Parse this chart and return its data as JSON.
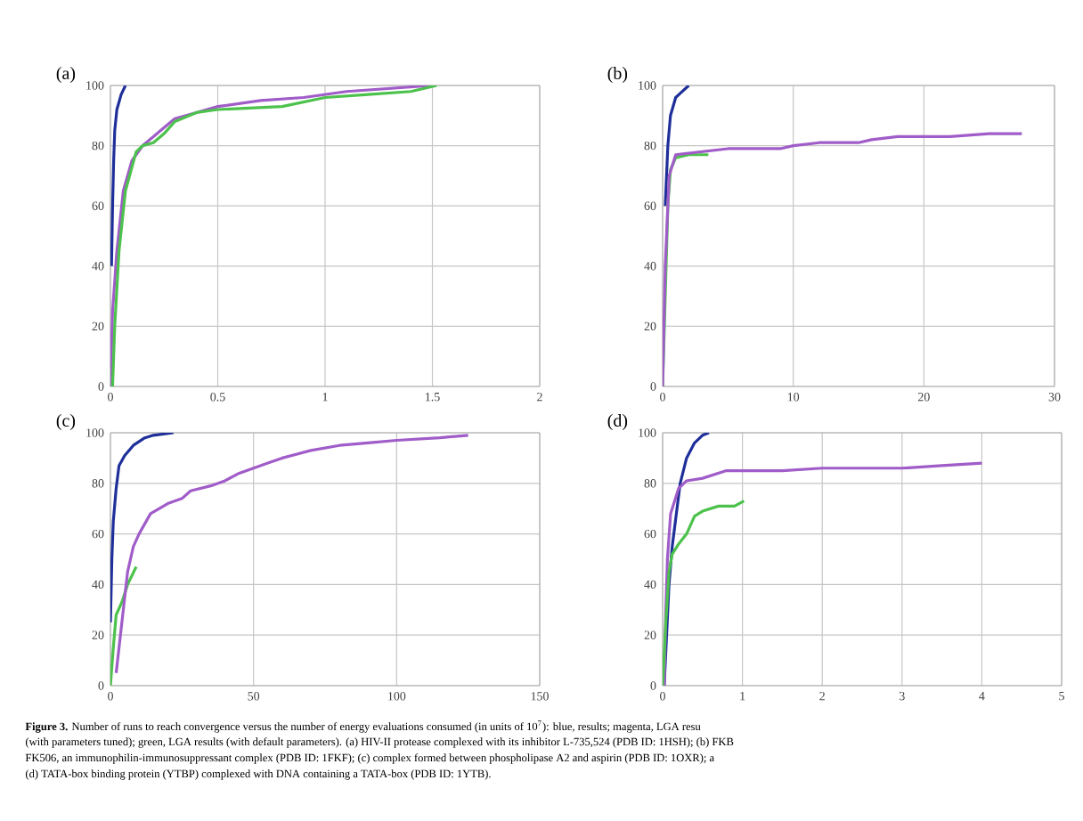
{
  "chart_data": [
    {
      "type": "line",
      "title": "(a)",
      "xlim": [
        0,
        2
      ],
      "xticks": [
        0,
        0.5,
        1,
        1.5,
        2
      ],
      "ylim": [
        0,
        100
      ],
      "yticks": [
        0,
        20,
        40,
        60,
        80,
        100
      ],
      "grid": true,
      "marker": "none",
      "line_style": "solid",
      "series": [
        {
          "color": "#1f2f9a",
          "x": [
            0.005,
            0.01,
            0.015,
            0.02,
            0.03,
            0.05,
            0.07
          ],
          "values": [
            40,
            60,
            75,
            85,
            92,
            97,
            100
          ]
        },
        {
          "color": "#a05cc8",
          "x": [
            0,
            0.01,
            0.03,
            0.06,
            0.1,
            0.15,
            0.2,
            0.25,
            0.3,
            0.4,
            0.5,
            0.7,
            0.9,
            1.1,
            1.5
          ],
          "values": [
            0,
            25,
            45,
            65,
            75,
            80,
            83,
            86,
            89,
            91,
            93,
            95,
            96,
            98,
            100
          ]
        },
        {
          "color": "#4cc24c",
          "x": [
            0.01,
            0.02,
            0.04,
            0.07,
            0.12,
            0.15,
            0.2,
            0.25,
            0.3,
            0.4,
            0.5,
            0.8,
            1.0,
            1.2,
            1.4,
            1.52
          ],
          "values": [
            0,
            20,
            45,
            65,
            78,
            80,
            81,
            84,
            88,
            91,
            92,
            93,
            96,
            97,
            98,
            100
          ]
        }
      ],
      "annotations": [
        "**Figure 3.** Number of runs to reach convergence versus the number of energy evaluations consumed (in units of 10$^{7}$): blue, results; magenta, LGA resu",
        "(with parameters tuned); green, LGA results (with default parameters). (a) HIV-II protease complexed with its inhibitor L-735,524 (PDB ID: 1HSH); (b) FKB",
        "FK506, an immunophilin-immunosuppressant complex (PDB ID: 1FKF); (c) complex formed between phospholipase A2 and aspirin (PDB ID: 1OXR); a",
        "(d) TATA-box binding protein (YTBP) complexed with DNA containing a TATA-box (PDB ID: 1YTB)."
      ]
    },
    {
      "type": "line",
      "title": "(b)",
      "xlim": [
        0,
        30
      ],
      "xticks": [
        0,
        10,
        20,
        30
      ],
      "ylim": [
        0,
        100
      ],
      "yticks": [
        0,
        20,
        40,
        60,
        80,
        100
      ],
      "grid": true,
      "marker": "none",
      "line_style": "solid",
      "series": [
        {
          "color": "#1f2f9a",
          "x": [
            0.2,
            0.4,
            0.6,
            1,
            2
          ],
          "values": [
            60,
            80,
            90,
            96,
            100
          ]
        },
        {
          "color": "#4cc24c",
          "x": [
            0,
            0.2,
            0.4,
            0.6,
            1,
            2,
            3.5
          ],
          "values": [
            0,
            30,
            60,
            72,
            76,
            77,
            77
          ]
        },
        {
          "color": "#a05cc8",
          "x": [
            0,
            0.2,
            0.5,
            1,
            3,
            5,
            9,
            10,
            12,
            15,
            16,
            18,
            22,
            25,
            27.5
          ],
          "values": [
            0,
            40,
            70,
            77,
            78,
            79,
            79,
            80,
            81,
            81,
            82,
            83,
            83,
            84,
            84
          ]
        }
      ]
    },
    {
      "type": "line",
      "title": "(c)",
      "xlim": [
        0,
        150
      ],
      "xticks": [
        0,
        50,
        100,
        150
      ],
      "ylim": [
        0,
        100
      ],
      "yticks": [
        0,
        20,
        40,
        60,
        80,
        100
      ],
      "grid": true,
      "marker": "none",
      "line_style": "solid",
      "series": [
        {
          "color": "#1f2f9a",
          "x": [
            0,
            0.5,
            1,
            2,
            3,
            5,
            8,
            12,
            15,
            22
          ],
          "values": [
            25,
            50,
            65,
            78,
            87,
            91,
            95,
            98,
            99,
            100
          ]
        },
        {
          "color": "#4cc24c",
          "x": [
            0,
            1,
            2,
            4,
            6,
            9
          ],
          "values": [
            0,
            15,
            28,
            33,
            40,
            47
          ]
        },
        {
          "color": "#a05cc8",
          "x": [
            2,
            4,
            6,
            8,
            10,
            14,
            20,
            25,
            28,
            35,
            40,
            45,
            50,
            55,
            60,
            70,
            80,
            90,
            100,
            115,
            125
          ],
          "values": [
            5,
            25,
            45,
            55,
            60,
            68,
            72,
            74,
            77,
            79,
            81,
            84,
            86,
            88,
            90,
            93,
            95,
            96,
            97,
            98,
            99
          ]
        }
      ]
    },
    {
      "type": "line",
      "title": "(d)",
      "xlim": [
        0,
        5
      ],
      "xticks": [
        0,
        1,
        2,
        3,
        4,
        5
      ],
      "ylim": [
        0,
        100
      ],
      "yticks": [
        0,
        20,
        40,
        60,
        80,
        100
      ],
      "grid": true,
      "marker": "none",
      "line_style": "solid",
      "series": [
        {
          "color": "#1f2f9a",
          "x": [
            0.02,
            0.05,
            0.08,
            0.12,
            0.18,
            0.22,
            0.3,
            0.4,
            0.5,
            0.58
          ],
          "values": [
            0,
            20,
            40,
            55,
            70,
            80,
            90,
            96,
            99,
            100
          ]
        },
        {
          "color": "#a05cc8",
          "x": [
            0.02,
            0.04,
            0.06,
            0.1,
            0.15,
            0.2,
            0.3,
            0.5,
            0.8,
            1.5,
            2,
            3,
            3.5,
            4
          ],
          "values": [
            0,
            30,
            50,
            68,
            73,
            78,
            81,
            82,
            85,
            85,
            86,
            86,
            87,
            88
          ]
        },
        {
          "color": "#4cc24c",
          "x": [
            0,
            0.04,
            0.08,
            0.12,
            0.2,
            0.3,
            0.4,
            0.5,
            0.7,
            0.9,
            1.02
          ],
          "values": [
            0,
            25,
            45,
            52,
            56,
            60,
            67,
            69,
            71,
            71,
            73
          ]
        }
      ]
    }
  ]
}
